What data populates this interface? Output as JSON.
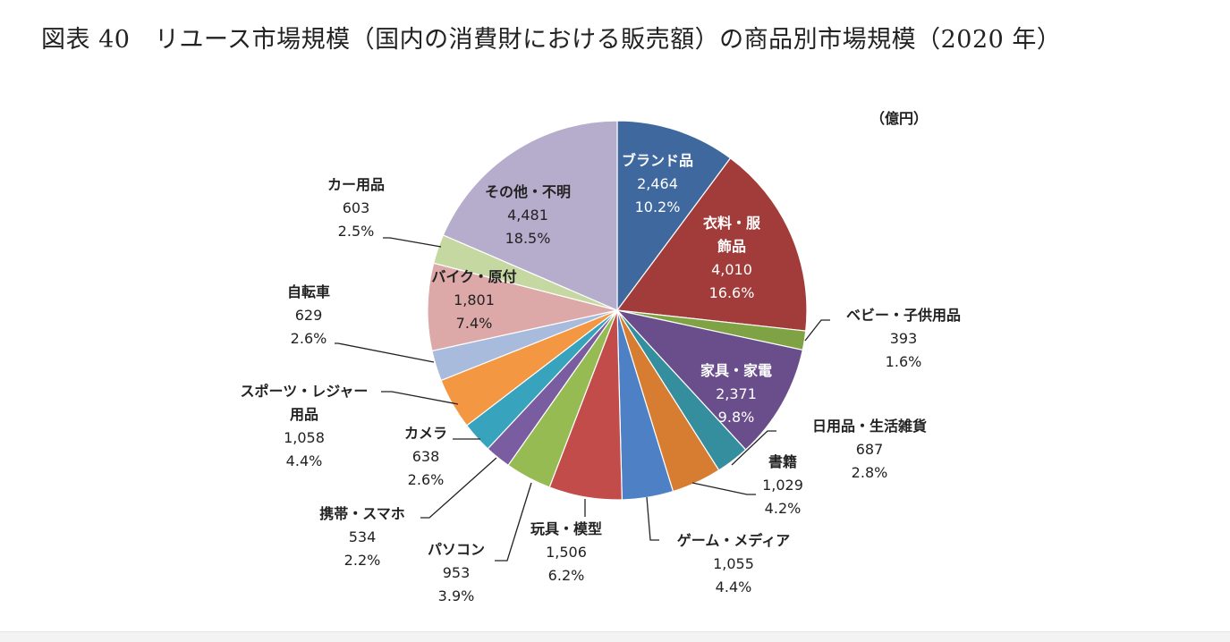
{
  "chart_data": {
    "type": "pie",
    "title": "図表 40　リユース市場規模（国内の消費財における販売額）の商品別市場規模（2020 年）",
    "unit": "（億円）",
    "slices": [
      {
        "name": "ブランド品",
        "value": "2,464",
        "amount": 2464,
        "share": "10.2%",
        "pct": 10.2,
        "color": "#3F689E"
      },
      {
        "name": "衣料・服\n飾品",
        "value": "4,010",
        "amount": 4010,
        "share": "16.6%",
        "pct": 16.6,
        "color": "#A23C3A"
      },
      {
        "name": "ベビー・子供用品",
        "value": "393",
        "amount": 393,
        "share": "1.6%",
        "pct": 1.6,
        "color": "#7EA244"
      },
      {
        "name": "家具・家電",
        "value": "2,371",
        "amount": 2371,
        "share": "9.8%",
        "pct": 9.8,
        "color": "#6A4E8C"
      },
      {
        "name": "日用品・生活雑貨",
        "value": "687",
        "amount": 687,
        "share": "2.8%",
        "pct": 2.8,
        "color": "#358E9E"
      },
      {
        "name": "書籍",
        "value": "1,029",
        "amount": 1029,
        "share": "4.2%",
        "pct": 4.2,
        "color": "#D67D31"
      },
      {
        "name": "ゲーム・メディア",
        "value": "1,055",
        "amount": 1055,
        "share": "4.4%",
        "pct": 4.4,
        "color": "#4E80C5"
      },
      {
        "name": "玩具・模型",
        "value": "1,506",
        "amount": 1506,
        "share": "6.2%",
        "pct": 6.2,
        "color": "#C14C4A"
      },
      {
        "name": "パソコン",
        "value": "953",
        "amount": 953,
        "share": "3.9%",
        "pct": 3.9,
        "color": "#97BB53"
      },
      {
        "name": "携帯・スマホ",
        "value": "534",
        "amount": 534,
        "share": "2.2%",
        "pct": 2.2,
        "color": "#7A5DA1"
      },
      {
        "name": "カメラ",
        "value": "638",
        "amount": 638,
        "share": "2.6%",
        "pct": 2.6,
        "color": "#38A3BC"
      },
      {
        "name": "スポーツ・レジャー\n用品",
        "value": "1,058",
        "amount": 1058,
        "share": "4.4%",
        "pct": 4.4,
        "color": "#F49742"
      },
      {
        "name": "自転車",
        "value": "629",
        "amount": 629,
        "share": "2.6%",
        "pct": 2.6,
        "color": "#A9BBDC"
      },
      {
        "name": "バイク・原付",
        "value": "1,801",
        "amount": 1801,
        "share": "7.4%",
        "pct": 7.4,
        "color": "#DCA9A8"
      },
      {
        "name": "カー用品",
        "value": "603",
        "amount": 603,
        "share": "2.5%",
        "pct": 2.5,
        "color": "#C6D8A2"
      },
      {
        "name": "その他・不明",
        "value": "4,481",
        "amount": 4481,
        "share": "18.5%",
        "pct": 18.5,
        "color": "#B6ADCC"
      }
    ]
  }
}
